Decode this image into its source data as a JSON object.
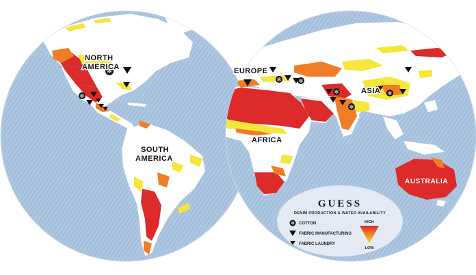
{
  "regions": {
    "north_america": [
      "NORTH",
      "AMERICA"
    ],
    "south_america": [
      "SOUTH",
      "AMERICA"
    ],
    "europe": "EUROPE",
    "africa": "AFRICA",
    "asia": "ASIA",
    "australia": "AUSTRALIA"
  },
  "legend": {
    "brand": "GUESS",
    "subtitle": "DENIM PRODUCTION & WATER AVAILABILITY",
    "items": [
      {
        "icon": "cotton-icon",
        "label": "COTTON"
      },
      {
        "icon": "fabric-manufacturing-icon",
        "label": "FABRIC MANUFACTURING"
      },
      {
        "icon": "fabric-laundry-icon",
        "label": "FABRIC LAUNDRY"
      }
    ],
    "scale_high": "HIGH",
    "scale_low": "LOW"
  },
  "colors": {
    "ocean": "#a9c3df",
    "land": "#ffffff",
    "stress_high": "#dd2a2a",
    "stress_mid": "#f07d26",
    "stress_low": "#f5e63a",
    "marker": "#111111"
  }
}
